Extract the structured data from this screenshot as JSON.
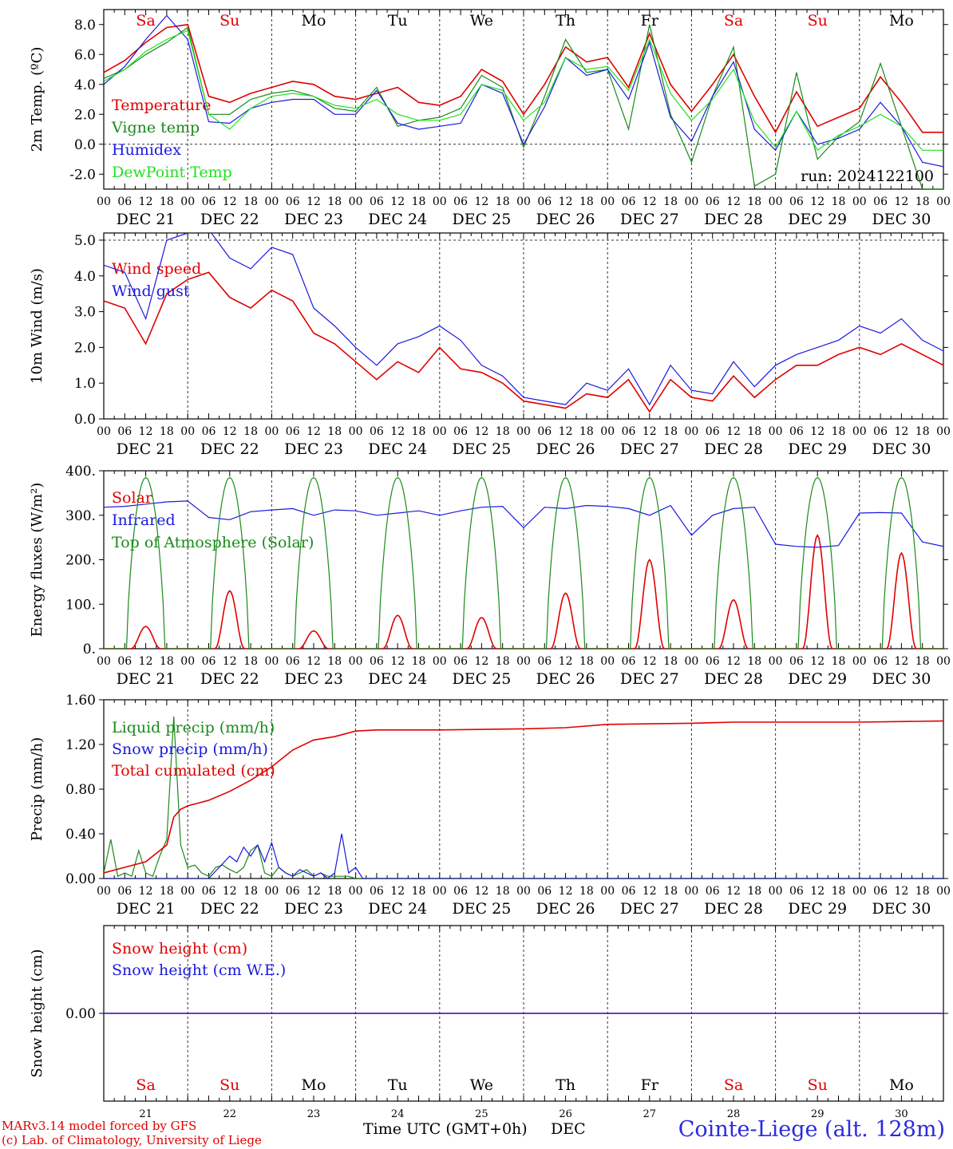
{
  "colors": {
    "red": "#e00000",
    "green": "#1a8a1a",
    "blue": "#1a1ae0",
    "lightgreen": "#22e022",
    "axis": "#000000",
    "grid": "#333333"
  },
  "days": [
    {
      "abbr": "Sa",
      "num": "21",
      "date": "DEC 21",
      "weekend": true
    },
    {
      "abbr": "Su",
      "num": "22",
      "date": "DEC 22",
      "weekend": true
    },
    {
      "abbr": "Mo",
      "num": "23",
      "date": "DEC 23",
      "weekend": false
    },
    {
      "abbr": "Tu",
      "num": "24",
      "date": "DEC 24",
      "weekend": false
    },
    {
      "abbr": "We",
      "num": "25",
      "date": "DEC 25",
      "weekend": false
    },
    {
      "abbr": "Th",
      "num": "26",
      "date": "DEC 26",
      "weekend": false
    },
    {
      "abbr": "Fr",
      "num": "27",
      "date": "DEC 27",
      "weekend": false
    },
    {
      "abbr": "Sa",
      "num": "28",
      "date": "DEC 28",
      "weekend": true
    },
    {
      "abbr": "Su",
      "num": "29",
      "date": "DEC 29",
      "weekend": true
    },
    {
      "abbr": "Mo",
      "num": "30",
      "date": "DEC 30",
      "weekend": false
    }
  ],
  "hour_ticks": [
    "00",
    "06",
    "12",
    "18"
  ],
  "last_tick": "00",
  "run_label": "run: 2024122100",
  "footer": {
    "model": "MARv3.14 model forced by GFS",
    "lab": "(c) Lab. of Climatology, University of Liege",
    "time_label": "Time UTC (GMT+0h)",
    "month": "DEC",
    "station": "Cointe-Liege (alt. 128m)"
  },
  "chart_data": [
    {
      "type": "line",
      "ylabel": "2m Temp. (ºC)",
      "ylim": [
        -3,
        9
      ],
      "ytick_values": [
        -2,
        0,
        2,
        4,
        6,
        8
      ],
      "ytick_labels": [
        "-2.0",
        "0.0",
        "2.0",
        "4.0",
        "6.0",
        "8.0"
      ],
      "hline": 0,
      "x_hours": [
        0,
        6,
        12,
        18,
        24,
        30,
        36,
        42,
        48,
        54,
        60,
        66,
        72,
        78,
        84,
        90,
        96,
        102,
        108,
        114,
        120,
        126,
        132,
        138,
        144,
        150,
        156,
        162,
        168,
        174,
        180,
        186,
        192,
        198,
        204,
        210,
        216,
        222,
        228,
        234,
        240
      ],
      "series": [
        {
          "name": "Temperature",
          "color": "red",
          "values": [
            4.8,
            5.6,
            6.8,
            7.8,
            8.0,
            3.2,
            2.8,
            3.4,
            3.8,
            4.2,
            4.0,
            3.2,
            3.0,
            3.4,
            3.8,
            2.8,
            2.6,
            3.2,
            5.0,
            4.2,
            2.0,
            4.0,
            6.5,
            5.5,
            5.8,
            3.8,
            7.4,
            4.0,
            2.2,
            4.0,
            6.0,
            3.2,
            0.8,
            3.5,
            1.2,
            1.8,
            2.4,
            4.5,
            2.8,
            0.8,
            0.8
          ]
        },
        {
          "name": "Vigne temp",
          "color": "green",
          "values": [
            4.4,
            5.0,
            6.0,
            6.8,
            7.8,
            2.0,
            2.0,
            3.0,
            3.4,
            3.6,
            3.2,
            2.4,
            2.2,
            3.8,
            1.2,
            1.6,
            1.8,
            2.4,
            4.6,
            3.8,
            -0.2,
            3.2,
            7.0,
            4.8,
            5.0,
            1.0,
            8.0,
            2.0,
            -1.2,
            3.2,
            6.5,
            -2.8,
            -2.0,
            4.8,
            -1.0,
            0.5,
            1.5,
            5.4,
            1.2,
            -3.0,
            -3.0
          ]
        },
        {
          "name": "Humidex",
          "color": "blue",
          "values": [
            4.0,
            5.2,
            7.0,
            8.6,
            7.0,
            1.5,
            1.4,
            2.4,
            2.8,
            3.0,
            3.0,
            2.0,
            2.0,
            3.6,
            1.4,
            1.0,
            1.2,
            1.4,
            4.0,
            3.4,
            0.0,
            2.5,
            5.8,
            4.6,
            5.0,
            3.0,
            6.8,
            1.8,
            0.2,
            3.2,
            5.5,
            1.0,
            -0.4,
            2.2,
            0.0,
            0.4,
            1.0,
            2.8,
            1.2,
            -1.2,
            -1.5
          ]
        },
        {
          "name": "DewPoint Temp",
          "color": "lightgreen",
          "values": [
            4.2,
            5.0,
            6.2,
            7.0,
            7.6,
            2.0,
            1.0,
            2.4,
            3.2,
            3.4,
            3.2,
            2.6,
            2.4,
            3.0,
            2.0,
            1.6,
            1.6,
            2.0,
            4.0,
            3.6,
            1.6,
            2.8,
            5.8,
            5.0,
            5.2,
            3.6,
            7.0,
            3.4,
            1.6,
            3.0,
            5.0,
            1.5,
            -0.2,
            2.2,
            -0.4,
            0.6,
            1.2,
            2.0,
            1.2,
            -0.4,
            -0.4
          ]
        }
      ]
    },
    {
      "type": "line",
      "ylabel": "10m Wind (m/s)",
      "ylim": [
        0,
        5.2
      ],
      "ytick_values": [
        0,
        1,
        2,
        3,
        4,
        5
      ],
      "ytick_labels": [
        "0.0",
        "1.0",
        "2.0",
        "3.0",
        "4.0",
        "5.0"
      ],
      "hline": 5,
      "x_hours": [
        0,
        6,
        12,
        18,
        24,
        30,
        36,
        42,
        48,
        54,
        60,
        66,
        72,
        78,
        84,
        90,
        96,
        102,
        108,
        114,
        120,
        126,
        132,
        138,
        144,
        150,
        156,
        162,
        168,
        174,
        180,
        186,
        192,
        198,
        204,
        210,
        216,
        222,
        228,
        234,
        240
      ],
      "series": [
        {
          "name": "Wind speed",
          "color": "red",
          "values": [
            3.3,
            3.1,
            2.1,
            3.5,
            3.9,
            4.1,
            3.4,
            3.1,
            3.6,
            3.3,
            2.4,
            2.1,
            1.6,
            1.1,
            1.6,
            1.3,
            2.0,
            1.4,
            1.3,
            1.0,
            0.5,
            0.4,
            0.3,
            0.7,
            0.6,
            1.1,
            0.2,
            1.1,
            0.6,
            0.5,
            1.2,
            0.6,
            1.1,
            1.5,
            1.5,
            1.8,
            2.0,
            1.8,
            2.1,
            1.8,
            1.5
          ]
        },
        {
          "name": "Wind gust",
          "color": "blue",
          "values": [
            4.3,
            4.1,
            2.8,
            5.0,
            5.2,
            5.3,
            4.5,
            4.2,
            4.8,
            4.6,
            3.1,
            2.6,
            2.0,
            1.5,
            2.1,
            2.3,
            2.6,
            2.2,
            1.5,
            1.2,
            0.6,
            0.5,
            0.4,
            1.0,
            0.8,
            1.4,
            0.4,
            1.5,
            0.8,
            0.7,
            1.6,
            0.9,
            1.5,
            1.8,
            2.0,
            2.2,
            2.6,
            2.4,
            2.8,
            2.2,
            1.9
          ]
        }
      ]
    },
    {
      "type": "line",
      "ylabel": "Energy fluxes (W/m²)",
      "ylim": [
        0,
        400
      ],
      "ytick_values": [
        0,
        100,
        200,
        300,
        400
      ],
      "ytick_labels": [
        "0.",
        "100.",
        "200.",
        "300.",
        "400."
      ],
      "series": [
        {
          "name": "Solar",
          "color": "red",
          "peaks": [
            50,
            130,
            40,
            75,
            70,
            125,
            200,
            110,
            255,
            215
          ]
        },
        {
          "name": "Infrared",
          "color": "blue",
          "x_hours": [
            0,
            6,
            12,
            18,
            24,
            30,
            36,
            42,
            48,
            54,
            60,
            66,
            72,
            78,
            84,
            90,
            96,
            102,
            108,
            114,
            120,
            126,
            132,
            138,
            144,
            150,
            156,
            162,
            168,
            174,
            180,
            186,
            192,
            198,
            204,
            210,
            216,
            222,
            228,
            234,
            240
          ],
          "values": [
            318,
            320,
            325,
            330,
            332,
            295,
            290,
            308,
            312,
            315,
            300,
            312,
            310,
            300,
            305,
            310,
            300,
            310,
            318,
            320,
            272,
            318,
            315,
            322,
            320,
            315,
            300,
            322,
            255,
            300,
            315,
            318,
            235,
            230,
            228,
            232,
            305,
            306,
            305,
            240,
            230
          ]
        },
        {
          "name": "Top of Atmosphere (Solar)",
          "color": "green",
          "peaks": [
            385,
            385,
            385,
            385,
            385,
            385,
            385,
            385,
            385,
            385
          ]
        }
      ]
    },
    {
      "type": "line",
      "ylabel": "Precip (mm/h)",
      "ylim": [
        0,
        1.6
      ],
      "ytick_values": [
        0,
        0.4,
        0.8,
        1.2,
        1.6
      ],
      "ytick_labels": [
        "0.00",
        "0.40",
        "0.80",
        "1.20",
        "1.60"
      ],
      "series": [
        {
          "name": "Liquid precip (mm/h)",
          "color": "green",
          "x_hours": [
            0,
            2,
            4,
            6,
            8,
            10,
            12,
            14,
            16,
            18,
            20,
            22,
            24,
            26,
            28,
            30,
            32,
            34,
            36,
            38,
            40,
            42,
            44,
            46,
            48,
            50,
            52,
            54,
            56,
            58,
            60,
            62,
            64,
            66,
            68,
            70,
            72,
            74,
            240
          ],
          "values": [
            0.05,
            0.35,
            0.02,
            0.05,
            0.02,
            0.25,
            0.05,
            0.02,
            0.2,
            0.35,
            1.45,
            0.3,
            0.1,
            0.12,
            0.05,
            0.02,
            0.1,
            0.12,
            0.08,
            0.05,
            0.1,
            0.25,
            0.3,
            0.05,
            0.02,
            0.1,
            0.05,
            0.02,
            0.05,
            0.08,
            0.02,
            0.05,
            0.02,
            0.02,
            0.02,
            0.02,
            0.0,
            0.0,
            0.0
          ]
        },
        {
          "name": "Snow precip (mm/h)",
          "color": "blue",
          "x_hours": [
            0,
            30,
            36,
            38,
            40,
            42,
            44,
            46,
            48,
            50,
            52,
            54,
            56,
            58,
            60,
            62,
            64,
            66,
            68,
            70,
            72,
            74,
            240
          ],
          "values": [
            0.0,
            0.0,
            0.2,
            0.15,
            0.28,
            0.2,
            0.3,
            0.15,
            0.32,
            0.1,
            0.05,
            0.02,
            0.08,
            0.05,
            0.02,
            0.05,
            0.0,
            0.05,
            0.4,
            0.05,
            0.1,
            0.0,
            0.0
          ]
        },
        {
          "name": "Total cumulated (cm)",
          "color": "red",
          "x_hours": [
            0,
            6,
            12,
            18,
            20,
            22,
            24,
            30,
            36,
            42,
            48,
            54,
            60,
            66,
            72,
            78,
            96,
            120,
            132,
            144,
            168,
            180,
            216,
            240
          ],
          "values": [
            0.05,
            0.1,
            0.15,
            0.3,
            0.55,
            0.62,
            0.65,
            0.7,
            0.78,
            0.88,
            1.0,
            1.15,
            1.24,
            1.27,
            1.32,
            1.33,
            1.33,
            1.34,
            1.35,
            1.38,
            1.39,
            1.4,
            1.4,
            1.41
          ]
        }
      ]
    },
    {
      "type": "line",
      "ylabel": "Snow height (cm)",
      "ylim": [
        -1,
        1
      ],
      "ytick_values": [
        0
      ],
      "ytick_labels": [
        "0.00"
      ],
      "series": [
        {
          "name": "Snow height (cm)",
          "color": "red",
          "x_hours": [
            0,
            240
          ],
          "values": [
            0,
            0
          ]
        },
        {
          "name": "Snow height (cm W.E.)",
          "color": "blue",
          "x_hours": [
            0,
            240
          ],
          "values": [
            0,
            0
          ]
        }
      ]
    }
  ]
}
